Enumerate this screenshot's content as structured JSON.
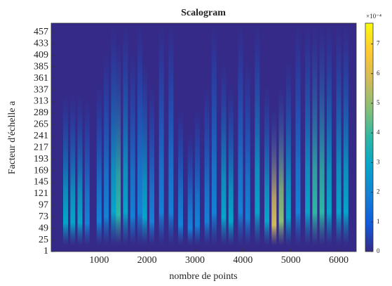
{
  "chart_data": {
    "type": "scalogram",
    "title": "Scalogram",
    "xlabel": "nombre de points",
    "ylabel": "Facteur d'échelle a",
    "xlim": [
      0,
      6365
    ],
    "xticks": [
      1000,
      2000,
      3000,
      4000,
      5000,
      6000
    ],
    "ylim": [
      1,
      476
    ],
    "yticks": [
      1,
      25,
      49,
      73,
      97,
      121,
      145,
      169,
      193,
      217,
      241,
      265,
      289,
      313,
      337,
      361,
      385,
      409,
      433,
      457
    ],
    "clim": [
      0,
      7.7
    ],
    "cticks": [
      0,
      1,
      2,
      3,
      4,
      5,
      6,
      7
    ],
    "colorbar_exponent": "×10⁻⁴",
    "colormap": [
      "#352a87",
      "#0f5cdd",
      "#1481d6",
      "#06a4ca",
      "#2eb7a4",
      "#87bf77",
      "#d1bb59",
      "#fec832",
      "#f9fb0e"
    ],
    "x": [
      300,
      450,
      600,
      750,
      1000,
      1150,
      1300,
      1400,
      1550,
      1700,
      1850,
      1950,
      2100,
      2300,
      2500,
      2700,
      2900,
      3050,
      3250,
      3400,
      3600,
      3750,
      3950,
      4100,
      4300,
      4500,
      4650,
      4800,
      4950,
      5150,
      5350,
      5500,
      5650,
      5800,
      6000,
      6150
    ],
    "extent": [
      330,
      330,
      330,
      320,
      350,
      420,
      476,
      440,
      476,
      420,
      476,
      400,
      350,
      476,
      476,
      300,
      250,
      300,
      350,
      476,
      400,
      350,
      476,
      400,
      476,
      350,
      300,
      350,
      400,
      476,
      476,
      476,
      476,
      476,
      476,
      476
    ],
    "values": [
      2.5,
      2.8,
      2.5,
      2.2,
      2.2,
      2.0,
      3.0,
      3.5,
      2.8,
      2.0,
      2.0,
      2.5,
      2.0,
      2.0,
      1.8,
      2.0,
      1.8,
      2.0,
      2.0,
      2.2,
      3.0,
      2.5,
      2.2,
      2.2,
      2.5,
      3.0,
      5.5,
      4.5,
      2.5,
      2.2,
      3.0,
      3.5,
      3.8,
      3.2,
      3.0,
      2.8
    ]
  }
}
